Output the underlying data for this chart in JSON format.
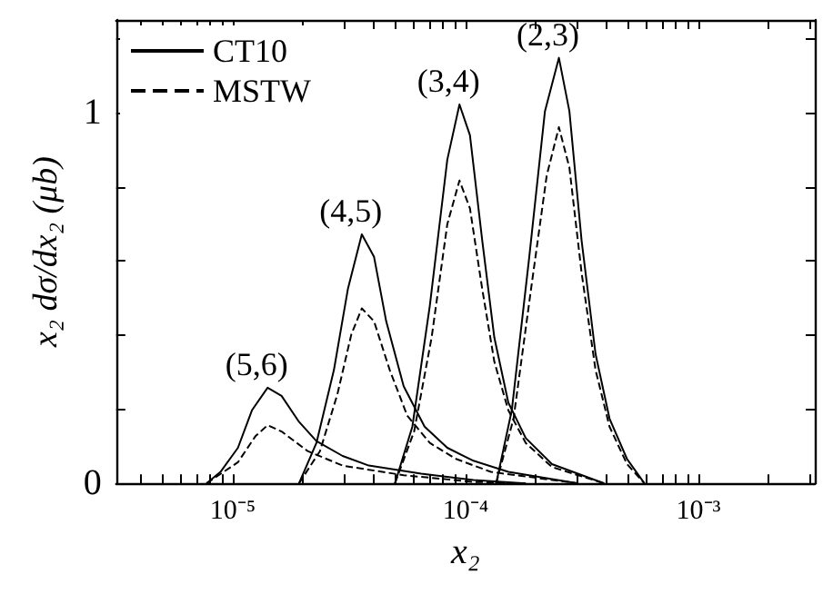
{
  "chart_data": {
    "type": "line",
    "xlabel": "x₂",
    "ylabel": "x₂ dσ/dx₂ (μb)",
    "log": "x",
    "marker": "none",
    "grid": false,
    "legend": "top left",
    "xlim": [
      3.16e-06,
      0.00316
    ],
    "ylim": [
      0,
      1.25
    ],
    "xticks": [
      {
        "value": 4e-06,
        "label": null
      },
      {
        "value": 5e-06,
        "label": null
      },
      {
        "value": 6e-06,
        "label": null
      },
      {
        "value": 7e-06,
        "label": null
      },
      {
        "value": 8e-06,
        "label": null
      },
      {
        "value": 9e-06,
        "label": null
      },
      {
        "value": 1e-05,
        "label": "10⁻⁵"
      },
      {
        "value": 2e-05,
        "label": null
      },
      {
        "value": 3e-05,
        "label": null
      },
      {
        "value": 4e-05,
        "label": null
      },
      {
        "value": 5e-05,
        "label": null
      },
      {
        "value": 6e-05,
        "label": null
      },
      {
        "value": 7e-05,
        "label": null
      },
      {
        "value": 8e-05,
        "label": null
      },
      {
        "value": 9e-05,
        "label": null
      },
      {
        "value": 0.0001,
        "label": "10⁻⁴"
      },
      {
        "value": 0.0002,
        "label": null
      },
      {
        "value": 0.0003,
        "label": null
      },
      {
        "value": 0.0004,
        "label": null
      },
      {
        "value": 0.0005,
        "label": null
      },
      {
        "value": 0.0006,
        "label": null
      },
      {
        "value": 0.0007,
        "label": null
      },
      {
        "value": 0.0008,
        "label": null
      },
      {
        "value": 0.0009,
        "label": null
      },
      {
        "value": 0.001,
        "label": "10⁻³"
      },
      {
        "value": 0.002,
        "label": null
      },
      {
        "value": 0.003,
        "label": null
      }
    ],
    "yticks": [
      0,
      {
        "value": 0.2,
        "label": null
      },
      {
        "value": 0.4,
        "label": null
      },
      {
        "value": 0.6,
        "label": null
      },
      {
        "value": 0.8,
        "label": null
      },
      1,
      {
        "value": 1.2,
        "label": null
      }
    ],
    "series": [
      {
        "name": "CT10",
        "color": "#000000",
        "line_style": "solid",
        "x": [
          7.72e-06,
          8.86e-06,
          1.053e-05,
          1.209e-05,
          1.412e-05,
          1.621e-05,
          1.926e-05,
          2.288e-05,
          2.964e-05,
          3.84e-05,
          6.442e-05,
          0.0001081,
          0.0001813
        ],
        "values": [
          0,
          0.031,
          0.096,
          0.197,
          0.258,
          0.236,
          0.166,
          0.114,
          0.074,
          0.048,
          0.026,
          0.009,
          0
        ]
      },
      {
        "name": "MSTW",
        "color": "#000000",
        "line_style": "dashed",
        "x": [
          7.72e-06,
          1.053e-05,
          1.251e-05,
          1.412e-05,
          1.621e-05,
          2.099e-05,
          2.964e-05,
          5.421e-05,
          0.0001081,
          0.0001813
        ],
        "values": [
          0,
          0.057,
          0.127,
          0.157,
          0.14,
          0.087,
          0.048,
          0.022,
          0.004,
          0
        ]
      },
      {
        "color": "#000000",
        "line_style": "solid",
        "x": [
          1.926e-05,
          2.288e-05,
          2.72e-05,
          3.122e-05,
          3.584e-05,
          4.045e-05,
          4.562e-05,
          5.421e-05,
          6.668e-05,
          8.345e-05,
          0.0001081,
          0.0001526,
          0.0003042
        ],
        "values": [
          0,
          0.109,
          0.306,
          0.524,
          0.672,
          0.611,
          0.437,
          0.262,
          0.153,
          0.096,
          0.061,
          0.031,
          0
        ]
      },
      {
        "color": "#000000",
        "line_style": "dashed",
        "x": [
          1.926e-05,
          2.369e-05,
          2.814e-05,
          3.232e-05,
          3.584e-05,
          4.045e-05,
          4.722e-05,
          5.612e-05,
          7.023e-05,
          9.096e-05,
          0.0001284,
          0.0003042
        ],
        "values": [
          0,
          0.087,
          0.24,
          0.402,
          0.472,
          0.437,
          0.306,
          0.183,
          0.109,
          0.066,
          0.031,
          0
        ]
      },
      {
        "color": "#000000",
        "line_style": "solid",
        "x": [
          4.973e-05,
          5.908e-05,
          7.023e-05,
          8.345e-05,
          9.414e-05,
          0.0001044,
          0.0001179,
          0.0001329,
          0.0001526,
          0.0001813,
          0.0002349,
          0.0003941
        ],
        "values": [
          0,
          0.153,
          0.48,
          0.873,
          1.022,
          0.939,
          0.655,
          0.393,
          0.218,
          0.122,
          0.052,
          0
        ]
      },
      {
        "color": "#000000",
        "line_style": "dashed",
        "x": [
          4.973e-05,
          6.012e-05,
          7.145e-05,
          8.345e-05,
          9.414e-05,
          0.0001044,
          0.0001179,
          0.0001329,
          0.0001526,
          0.0001813,
          0.0002349,
          0.0003941
        ],
        "values": [
          0,
          0.14,
          0.393,
          0.699,
          0.817,
          0.742,
          0.524,
          0.328,
          0.197,
          0.109,
          0.044,
          0
        ]
      },
      {
        "color": "#000000",
        "line_style": "solid",
        "x": [
          0.0001353,
          0.0001579,
          0.0001877,
          0.0002192,
          0.0002516,
          0.0002791,
          0.0003149,
          0.0003615,
          0.000415,
          0.0004932,
          0.000586
        ],
        "values": [
          0,
          0.197,
          0.611,
          1.004,
          1.148,
          1.004,
          0.655,
          0.349,
          0.175,
          0.066,
          0
        ]
      },
      {
        "color": "#000000",
        "line_style": "dashed",
        "x": [
          0.0001353,
          0.0001607,
          0.000191,
          0.000223,
          0.0002516,
          0.0002791,
          0.0003149,
          0.0003615,
          0.000415,
          0.0004932,
          0.000586
        ],
        "values": [
          0,
          0.175,
          0.524,
          0.83,
          0.961,
          0.852,
          0.568,
          0.306,
          0.153,
          0.052,
          0
        ]
      }
    ],
    "annotations": [
      {
        "text": "(5,6)",
        "x": 1.412e-05,
        "y": 0.258
      },
      {
        "text": "(4,5)",
        "x": 3.584e-05,
        "y": 0.672
      },
      {
        "text": "(3,4)",
        "x": 9.414e-05,
        "y": 1.022
      },
      {
        "text": "(2,3)",
        "x": 0.0002516,
        "y": 1.148
      }
    ]
  }
}
